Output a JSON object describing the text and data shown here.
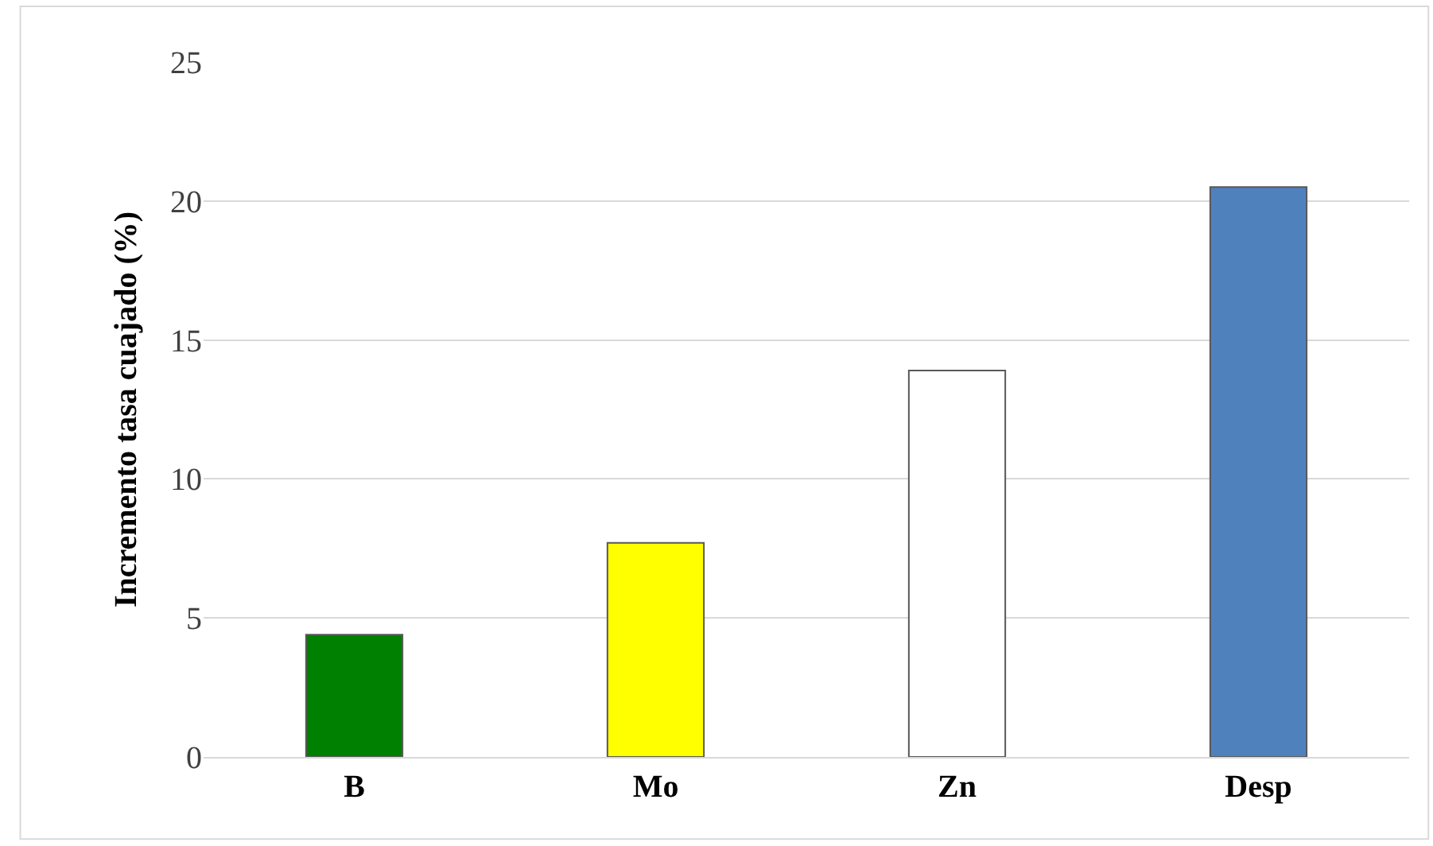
{
  "chart_data": {
    "type": "bar",
    "ylabel": "Incremento tasa cuajado (%)",
    "categories": [
      "B",
      "Mo",
      "Zn",
      "Desp"
    ],
    "values": [
      4.4,
      7.7,
      13.9,
      20.5
    ],
    "colors": [
      "#008000",
      "#ffff00",
      "#ffffff",
      "#4f81bd"
    ],
    "ylim": [
      0,
      25
    ],
    "yticks": [
      0,
      5,
      10,
      15,
      20,
      25
    ],
    "grid": "y"
  }
}
